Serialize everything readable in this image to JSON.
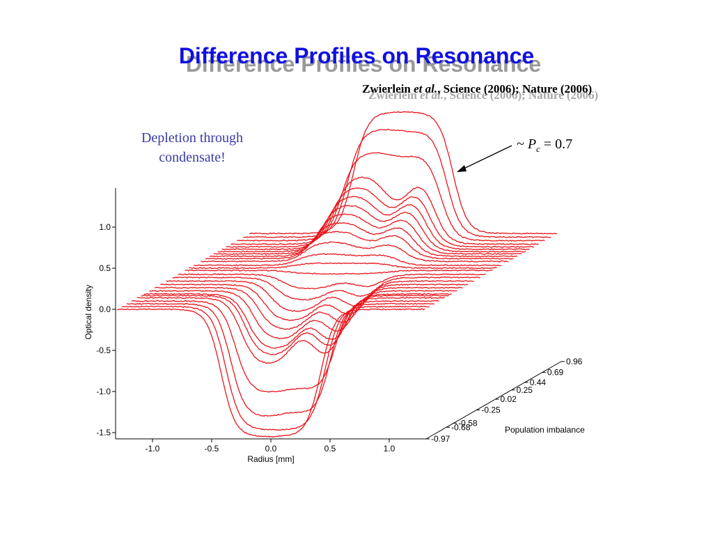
{
  "slide": {
    "title": "Difference Profiles on Resonance",
    "citation_author": "Zwierlein",
    "citation_etal": "et al.",
    "citation_rest": ", Science (2006); Nature (2006)",
    "note_line1": "Depletion through",
    "note_line2": "condensate!",
    "pc_prefix": "~ ",
    "pc_symbol": "P",
    "pc_sub": "c",
    "pc_value": " = 0.7"
  },
  "colors": {
    "title": "#1010e0",
    "curves": "#e8141b",
    "note": "#3a3aa8"
  },
  "chart_data": {
    "type": "line",
    "style": "3d waterfall",
    "xlabel": "Radius [mm]",
    "ylabel": "Optical density",
    "zlabel": "Population imbalance",
    "x_ticks": [
      "-1.0",
      "-0.5",
      "0.0",
      "0.5",
      "1.0"
    ],
    "x_tick_values": [
      -1.0,
      -0.5,
      0.0,
      0.5,
      1.0
    ],
    "y_ticks": [
      "1.0",
      "0.5",
      "0.0",
      "-0.5",
      "-1.0",
      "-1.5"
    ],
    "y_tick_values": [
      1.0,
      0.5,
      0.0,
      -0.5,
      -1.0,
      -1.5
    ],
    "z_ticks": [
      "-0.97",
      "-0.68",
      "-0.58",
      "-0.25",
      "0.02",
      "0.25",
      "0.44",
      "0.69",
      "0.96"
    ],
    "z_tick_values": [
      -0.97,
      -0.68,
      -0.58,
      -0.25,
      0.02,
      0.25,
      0.44,
      0.69,
      0.96
    ],
    "xlim": [
      -1.3,
      1.3
    ],
    "ylim": [
      -1.5,
      1.5
    ],
    "zlim": [
      -0.97,
      0.96
    ],
    "series_count": 27,
    "condensate_dip_radius_mm": 0.1,
    "annotation": "~ Pc = 0.7",
    "series": [
      {
        "imbalance": -0.97,
        "amplitude": -1.55,
        "dip": 0.0
      },
      {
        "imbalance": -0.9,
        "amplitude": -1.5,
        "dip": 0.0
      },
      {
        "imbalance": -0.83,
        "amplitude": -1.38,
        "dip": 0.05
      },
      {
        "imbalance": -0.76,
        "amplitude": -1.12,
        "dip": 0.05
      },
      {
        "imbalance": -0.68,
        "amplitude": -0.82,
        "dip": 0.3
      },
      {
        "imbalance": -0.62,
        "amplitude": -0.74,
        "dip": 0.28
      },
      {
        "imbalance": -0.58,
        "amplitude": -0.68,
        "dip": 0.26
      },
      {
        "imbalance": -0.5,
        "amplitude": -0.6,
        "dip": 0.24
      },
      {
        "imbalance": -0.42,
        "amplitude": -0.52,
        "dip": 0.22
      },
      {
        "imbalance": -0.34,
        "amplitude": -0.45,
        "dip": 0.2
      },
      {
        "imbalance": -0.25,
        "amplitude": -0.38,
        "dip": 0.18
      },
      {
        "imbalance": -0.16,
        "amplitude": -0.28,
        "dip": 0.12
      },
      {
        "imbalance": -0.08,
        "amplitude": -0.18,
        "dip": 0.08
      },
      {
        "imbalance": 0.02,
        "amplitude": -0.04,
        "dip": 0.0
      },
      {
        "imbalance": 0.08,
        "amplitude": 0.06,
        "dip": 0.0
      },
      {
        "imbalance": 0.15,
        "amplitude": 0.14,
        "dip": 0.03
      },
      {
        "imbalance": 0.25,
        "amplitude": 0.24,
        "dip": 0.08
      },
      {
        "imbalance": 0.32,
        "amplitude": 0.34,
        "dip": 0.12
      },
      {
        "imbalance": 0.38,
        "amplitude": 0.42,
        "dip": 0.15
      },
      {
        "imbalance": 0.44,
        "amplitude": 0.5,
        "dip": 0.18
      },
      {
        "imbalance": 0.5,
        "amplitude": 0.58,
        "dip": 0.21
      },
      {
        "imbalance": 0.56,
        "amplitude": 0.66,
        "dip": 0.24
      },
      {
        "imbalance": 0.62,
        "amplitude": 0.74,
        "dip": 0.26
      },
      {
        "imbalance": 0.69,
        "amplitude": 0.84,
        "dip": 0.3
      },
      {
        "imbalance": 0.78,
        "amplitude": 1.08,
        "dip": 0.05
      },
      {
        "imbalance": 0.87,
        "amplitude": 1.32,
        "dip": 0.03
      },
      {
        "imbalance": 0.96,
        "amplitude": 1.48,
        "dip": 0.0
      }
    ]
  }
}
